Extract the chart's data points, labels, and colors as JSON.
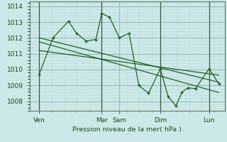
{
  "background_color": "#cce8e8",
  "grid_major_color": "#99bbbb",
  "grid_minor_color": "#bbdddd",
  "line_color": "#1a5c1a",
  "ylabel": "Pression niveau de la mer( hPa )",
  "ylim": [
    1007.4,
    1014.3
  ],
  "yticks": [
    1008,
    1009,
    1010,
    1011,
    1012,
    1013,
    1014
  ],
  "xlim": [
    0.0,
    1.0
  ],
  "xtick_labels": [
    "Ven",
    "Mar",
    "Sam",
    "Dim",
    "Lun"
  ],
  "xtick_positions": [
    0.05,
    0.37,
    0.46,
    0.67,
    0.92
  ],
  "vline_positions": [
    0.05,
    0.37,
    0.67,
    0.92
  ],
  "series1_x": [
    0.05,
    0.12,
    0.2,
    0.24,
    0.29,
    0.34,
    0.37,
    0.41,
    0.46,
    0.51,
    0.56,
    0.61,
    0.67,
    0.71,
    0.75,
    0.78,
    0.81,
    0.85,
    0.92,
    0.97
  ],
  "series1_y": [
    1009.7,
    1012.0,
    1013.05,
    1012.3,
    1011.8,
    1011.9,
    1013.55,
    1013.3,
    1012.0,
    1012.3,
    1009.0,
    1008.5,
    1010.05,
    1008.3,
    1007.7,
    1008.55,
    1008.85,
    1008.8,
    1010.05,
    1009.1
  ],
  "trend1_x": [
    0.05,
    0.97
  ],
  "trend1_y": [
    1012.0,
    1009.2
  ],
  "trend2_x": [
    0.05,
    0.97
  ],
  "trend2_y": [
    1011.75,
    1008.55
  ],
  "trend3_x": [
    0.05,
    0.97
  ],
  "trend3_y": [
    1011.2,
    1009.65
  ]
}
